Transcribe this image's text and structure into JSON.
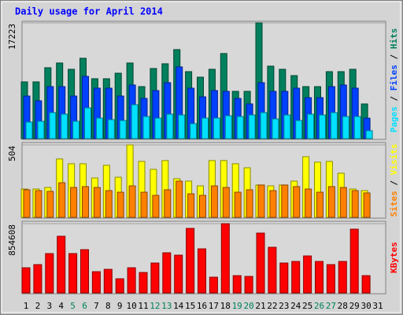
{
  "chart_data": [
    {
      "type": "bar",
      "title": "Daily usage for April 2014",
      "legend_separator": " / ",
      "ylim": [
        0,
        17223
      ],
      "yticks": [
        17223
      ],
      "series": [
        {
          "name": "Hits",
          "color": "#00805c",
          "values": [
            8438,
            8438,
            10548,
            11251,
            10314,
            11954,
            8907,
            8907,
            9728,
            11251,
            7735,
            10431,
            11134,
            13244,
            9962,
            9142,
            10314,
            12658,
            7032,
            7032,
            17223,
            10782,
            10314,
            9376,
            7735,
            7735,
            9962,
            9962,
            10314,
            5157,
            0
          ]
        },
        {
          "name": "Files",
          "color": "#0040ff",
          "values": [
            6329,
            5626,
            7735,
            7735,
            6329,
            9259,
            7501,
            7501,
            6329,
            7970,
            5977,
            7149,
            8321,
            10665,
            7501,
            6212,
            7149,
            7032,
            5977,
            5157,
            8321,
            7032,
            7032,
            7501,
            6094,
            6094,
            7735,
            7970,
            7501,
            3047,
            0
          ]
        },
        {
          "name": "Pages",
          "color": "#00e0ff",
          "values": [
            2461,
            2578,
            3868,
            3633,
            2578,
            4571,
            3047,
            2813,
            2696,
            5040,
            3282,
            3047,
            3633,
            3516,
            2227,
            3047,
            3047,
            3399,
            3282,
            3516,
            3868,
            2930,
            3516,
            2696,
            3633,
            3516,
            3868,
            3282,
            3282,
            1172,
            0
          ]
        }
      ]
    },
    {
      "type": "bar",
      "legend_separator": " / ",
      "ylim": [
        0,
        504
      ],
      "yticks": [
        504
      ],
      "series": [
        {
          "name": "Visits",
          "color": "#ffff00",
          "values": [
            197,
            197,
            208,
            406,
            373,
            373,
            274,
            362,
            279,
            504,
            389,
            334,
            395,
            269,
            252,
            219,
            395,
            395,
            373,
            345,
            225,
            219,
            225,
            252,
            422,
            384,
            389,
            307,
            197,
            186,
            0
          ]
        },
        {
          "name": "Sites",
          "color": "#ff8000",
          "values": [
            192,
            186,
            181,
            241,
            208,
            214,
            208,
            186,
            175,
            219,
            175,
            153,
            192,
            252,
            164,
            153,
            219,
            208,
            175,
            192,
            225,
            186,
            225,
            214,
            197,
            175,
            214,
            208,
            186,
            170,
            0
          ]
        }
      ]
    },
    {
      "type": "bar",
      "ylim": [
        0,
        854608
      ],
      "yticks": [
        854608
      ],
      "categories": [
        "1",
        "2",
        "3",
        "4",
        "5",
        "6",
        "7",
        "8",
        "9",
        "10",
        "11",
        "12",
        "13",
        "14",
        "15",
        "16",
        "17",
        "18",
        "19",
        "20",
        "21",
        "22",
        "23",
        "24",
        "25",
        "26",
        "27",
        "28",
        "29",
        "30",
        "31"
      ],
      "category_colors": [
        "#000000",
        "#000000",
        "#000000",
        "#000000",
        "#00805c",
        "#00805c",
        "#000000",
        "#000000",
        "#000000",
        "#000000",
        "#000000",
        "#00805c",
        "#00805c",
        "#000000",
        "#000000",
        "#000000",
        "#000000",
        "#000000",
        "#00805c",
        "#00805c",
        "#000000",
        "#000000",
        "#000000",
        "#000000",
        "#000000",
        "#00805c",
        "#00805c",
        "#000000",
        "#000000",
        "#000000",
        "#000000"
      ],
      "series": [
        {
          "name": "KBytes",
          "color": "#ff0000",
          "values": [
            310752,
            349596,
            485550,
            699192,
            485550,
            534105,
            262197,
            291330,
            174798,
            310752,
            252486,
            369018,
            495261,
            466128,
            796302,
            543816,
            194220,
            854608,
            213642,
            203931,
            738036,
            563238,
            369018,
            388440,
            456417,
            388440,
            349596,
            388440,
            786591,
            213642,
            0
          ]
        }
      ]
    }
  ]
}
